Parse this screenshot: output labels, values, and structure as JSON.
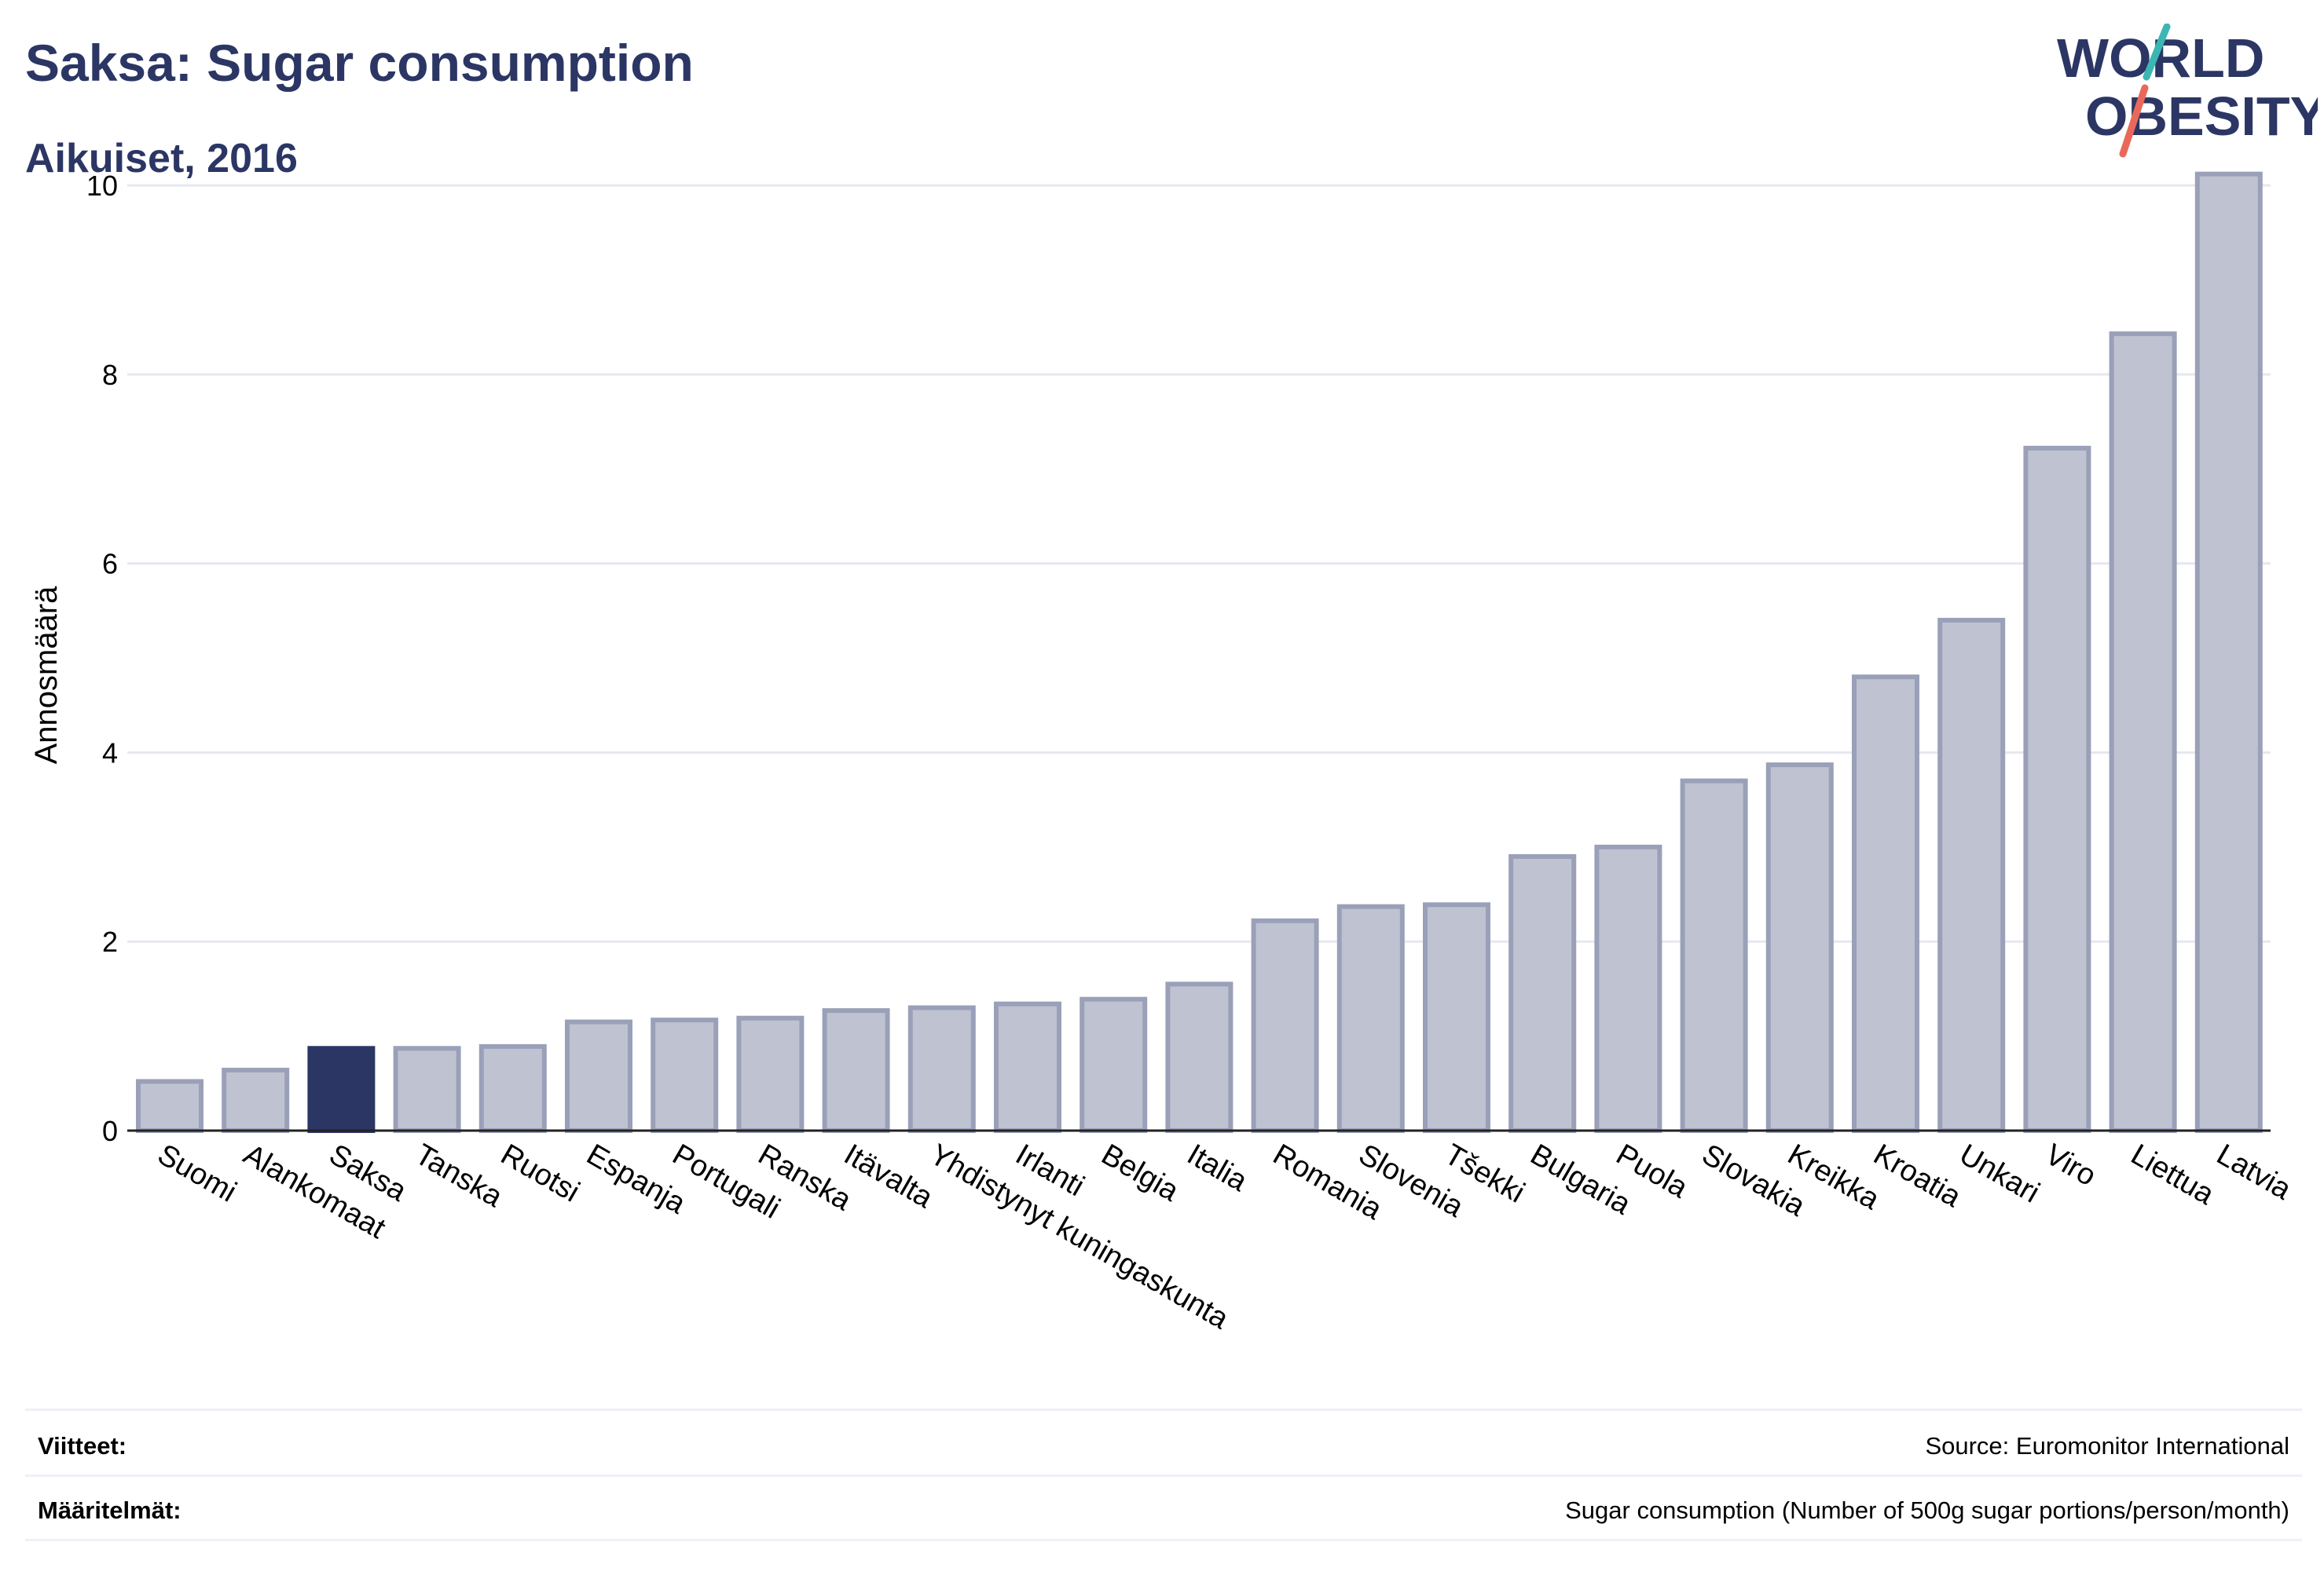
{
  "header": {
    "title": "Saksa: Sugar consumption",
    "subtitle": "Aikuiset, 2016",
    "logo_line1": "WORLD",
    "logo_line2": "OBESITY"
  },
  "colors": {
    "title": "#2b3664",
    "highlight_bar": "#2b3664",
    "bar_fill": "#bfc3d1",
    "bar_stroke": "#9aa0b8",
    "logo_teal": "#3cb6b3",
    "logo_coral": "#e8695a"
  },
  "chart_data": {
    "type": "bar",
    "ylabel": "Annosmäärä",
    "xlabel": "",
    "ylim": [
      0,
      10.3
    ],
    "yticks": [
      0,
      2,
      4,
      6,
      8,
      10
    ],
    "grid": true,
    "highlight": "Saksa",
    "categories": [
      "Suomi",
      "Alankomaat",
      "Saksa",
      "Tanska",
      "Ruotsi",
      "Espanja",
      "Portugali",
      "Ranska",
      "Itävalta",
      "Yhdistynyt kuningaskunta",
      "Irlanti",
      "Belgia",
      "Italia",
      "Romania",
      "Slovenia",
      "Tšekki",
      "Bulgaria",
      "Puola",
      "Slovakia",
      "Kreikka",
      "Kroatia",
      "Unkari",
      "Viro",
      "Liettua",
      "Latvia"
    ],
    "values": [
      0.52,
      0.64,
      0.87,
      0.87,
      0.89,
      1.15,
      1.17,
      1.19,
      1.27,
      1.3,
      1.34,
      1.39,
      1.55,
      2.22,
      2.37,
      2.39,
      2.9,
      3.0,
      3.7,
      3.87,
      4.8,
      5.4,
      7.22,
      8.43,
      10.12
    ]
  },
  "footer": {
    "references_label": "Viitteet:",
    "references_value": "Source: Euromonitor International",
    "definitions_label": "Määritelmät:",
    "definitions_value": "Sugar consumption (Number of 500g sugar portions/person/month)"
  }
}
